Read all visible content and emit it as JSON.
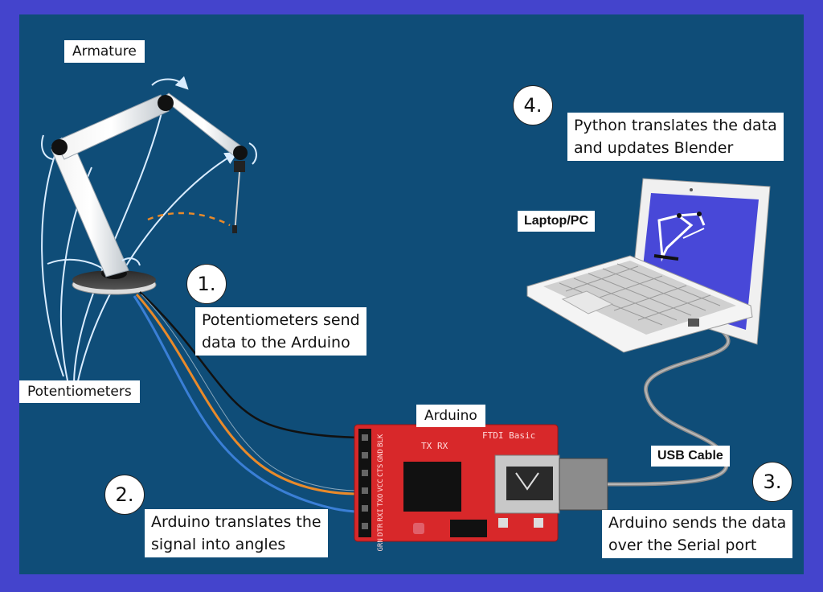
{
  "colors": {
    "frame": "#4444cc",
    "background": "#0f4d78",
    "arduino_board": "#d8282a",
    "wire_black": "#111111",
    "wire_orange": "#e98a2a",
    "wire_blue": "#3a7fd6",
    "cable": "#8a8a8a"
  },
  "labels": {
    "armature": "Armature",
    "potentiometers": "Potentiometers",
    "arduino": "Arduino",
    "laptop": "Laptop/PC",
    "usb_cable": "USB Cable"
  },
  "steps": [
    {
      "number": "1.",
      "text_line1": "Potentiometers send",
      "text_line2": "data to the Arduino"
    },
    {
      "number": "2.",
      "text_line1": "Arduino translates the",
      "text_line2": "signal into angles"
    },
    {
      "number": "3.",
      "text_line1": "Arduino sends the data",
      "text_line2": "over the Serial port"
    },
    {
      "number": "4.",
      "text_line1": "Python translates the data",
      "text_line2": "and updates Blender"
    }
  ],
  "board": {
    "pins_label": "BLK GND CTS VCC TXO RXI DTR GRN",
    "pin_names": [
      "BLK",
      "GND",
      "CTS",
      "VCC",
      "TXO",
      "RXI",
      "DTR",
      "GRN"
    ],
    "tx_label": "TX",
    "rx_label": "RX",
    "brand_label": "FTDI Basic"
  }
}
